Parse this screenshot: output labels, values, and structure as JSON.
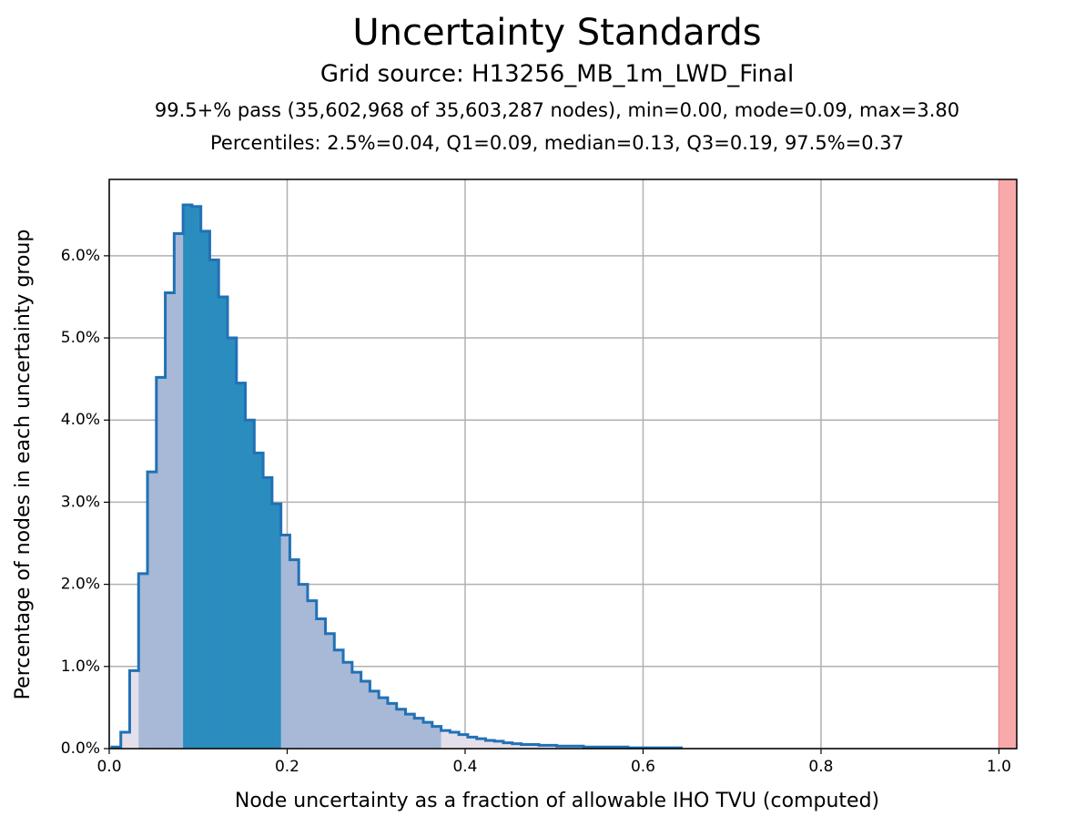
{
  "chart_data": {
    "type": "histogram",
    "title": "Uncertainty Standards",
    "subtitle": "Grid source: H13256_MB_1m_LWD_Final",
    "annotations": [
      "99.5+% pass (35,602,968 of 35,603,287 nodes), min=0.00, mode=0.09, max=3.80",
      "Percentiles: 2.5%=0.04, Q1=0.09, median=0.13, Q3=0.19, 97.5%=0.37"
    ],
    "x_label": "Node uncertainty as a fraction of allowable IHO TVU (computed)",
    "y_label": "Percentage of nodes in each uncertainty group",
    "bins": [
      0.003,
      0.013,
      0.023,
      0.033,
      0.043,
      0.053,
      0.063,
      0.073,
      0.083,
      0.093,
      0.103,
      0.113,
      0.123,
      0.133,
      0.143,
      0.153,
      0.163,
      0.173,
      0.183,
      0.193,
      0.203,
      0.213,
      0.223,
      0.233,
      0.243,
      0.253,
      0.263,
      0.273,
      0.283,
      0.293,
      0.303,
      0.313,
      0.323,
      0.333,
      0.343,
      0.353,
      0.363,
      0.373,
      0.383,
      0.393,
      0.403,
      0.413,
      0.423,
      0.433,
      0.443,
      0.453,
      0.463,
      0.473,
      0.483,
      0.493,
      0.503,
      0.513,
      0.523,
      0.533,
      0.543,
      0.553,
      0.563,
      0.573,
      0.583,
      0.593,
      0.603,
      0.613,
      0.623,
      0.633,
      0.643
    ],
    "counts": [
      0.02,
      0.2,
      0.95,
      2.13,
      3.37,
      4.52,
      5.55,
      6.27,
      6.62,
      6.6,
      6.3,
      5.95,
      5.5,
      5.0,
      4.45,
      4.0,
      3.6,
      3.3,
      2.98,
      2.6,
      2.3,
      2.0,
      1.8,
      1.58,
      1.4,
      1.2,
      1.05,
      0.93,
      0.82,
      0.7,
      0.62,
      0.55,
      0.48,
      0.42,
      0.37,
      0.32,
      0.27,
      0.22,
      0.2,
      0.17,
      0.14,
      0.12,
      0.1,
      0.09,
      0.07,
      0.06,
      0.05,
      0.05,
      0.04,
      0.04,
      0.03,
      0.03,
      0.03,
      0.02,
      0.02,
      0.02,
      0.02,
      0.02,
      0.01,
      0.01,
      0.01,
      0.01,
      0.01,
      0.01
    ],
    "shade_edges": [
      0.003,
      0.033,
      0.083,
      0.193,
      0.373,
      0.643
    ],
    "shade_colors": [
      "#e5dfec",
      "#a7b9d7",
      "#2b8cbe",
      "#a7b9d7",
      "#e5dfec"
    ],
    "outline_color": "#2171b5",
    "threshold": 1.0,
    "fail_color": "#f8a9a9",
    "xlim": [
      0,
      1.02
    ],
    "xticks": [
      {
        "value": 0,
        "label": "0.0"
      },
      0.2,
      0.4,
      0.6,
      0.8,
      {
        "value": 1,
        "label": "1.0"
      }
    ],
    "ylim": [
      0,
      6.93
    ],
    "yticks": [
      {
        "value": 0,
        "label": "0.0%"
      },
      {
        "value": 1,
        "label": "1.0%"
      },
      {
        "value": 2,
        "label": "2.0%"
      },
      {
        "value": 3,
        "label": "3.0%"
      },
      {
        "value": 4,
        "label": "4.0%"
      },
      {
        "value": 5,
        "label": "5.0%"
      },
      {
        "value": 6,
        "label": "6.0%"
      }
    ],
    "grid": true
  }
}
